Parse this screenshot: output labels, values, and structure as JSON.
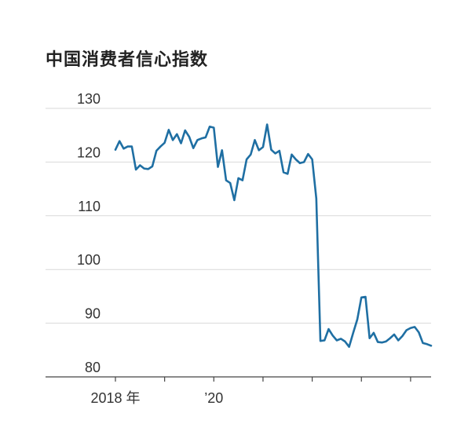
{
  "chart_data": {
    "type": "line",
    "title": "中国消费者信心指数",
    "xlabel": "",
    "ylabel": "",
    "ylim": [
      80,
      130
    ],
    "yticks": [
      80,
      90,
      100,
      110,
      120,
      130
    ],
    "xtick_labels": [
      "2018 年",
      "",
      "’20",
      "",
      "",
      "",
      "",
      "",
      ""
    ],
    "color": "#1f6fa3",
    "grid": true,
    "series": [
      {
        "values": [
          122.3,
          123.9,
          122.5,
          122.9,
          122.9,
          118.6,
          119.4,
          118.8,
          118.7,
          119.2,
          122.1,
          122.9,
          123.6,
          126.0,
          124.1,
          125.2,
          123.5,
          125.9,
          124.7,
          122.6,
          124.1,
          124.4,
          124.6,
          126.6,
          126.4,
          119.1,
          122.2,
          116.6,
          116.1,
          112.9,
          117.0,
          116.6,
          120.5,
          121.4,
          124.1,
          122.2,
          122.8,
          127.0,
          122.3,
          121.6,
          122.1,
          118.1,
          117.8,
          121.4,
          120.5,
          119.8,
          120.0,
          121.5,
          120.5,
          113.2,
          86.7,
          86.8,
          88.9,
          87.7,
          86.8,
          87.1,
          86.6,
          85.6,
          88.2,
          90.7,
          94.8,
          94.9,
          87.2,
          88.2,
          86.5,
          86.4,
          86.6,
          87.2,
          87.9,
          86.8,
          87.6,
          88.7,
          89.1,
          89.3,
          88.3,
          86.3,
          86.1,
          85.8
        ]
      }
    ]
  }
}
